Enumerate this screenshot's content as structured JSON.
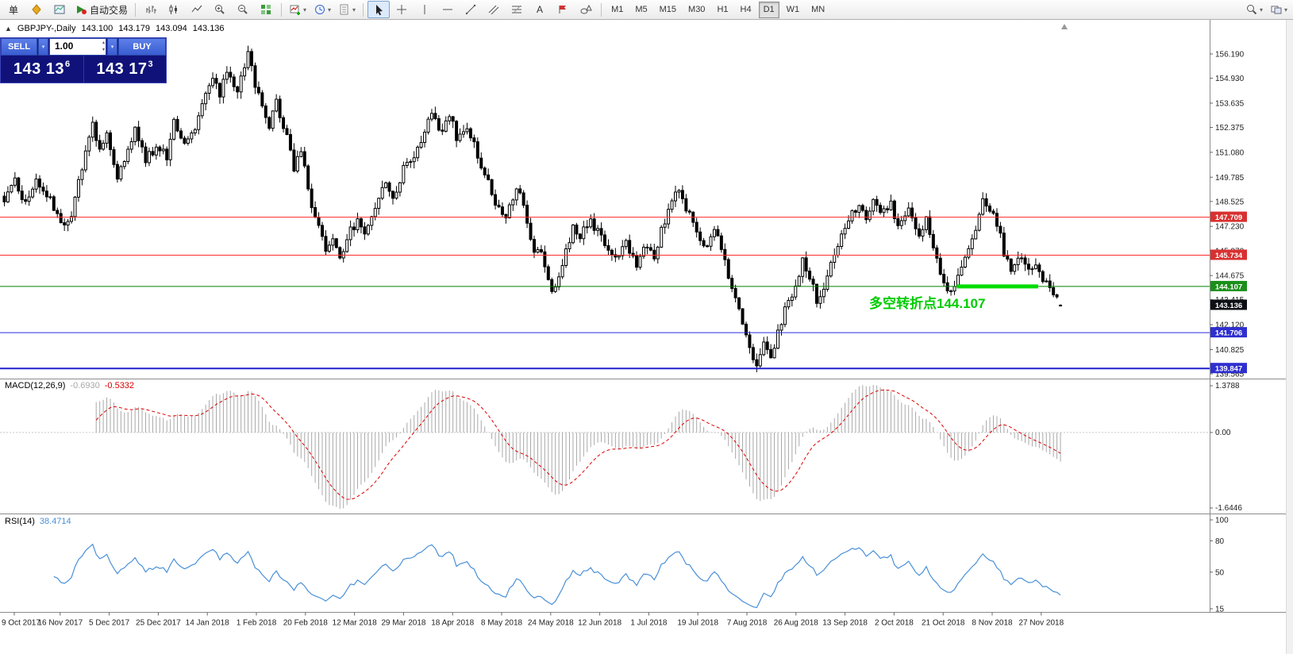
{
  "toolbar": {
    "new_order_label": "单",
    "auto_trading_label": "自动交易",
    "chart_group_icons": [
      "bar-chart-icon",
      "candlestick-chart-icon",
      "line-chart-icon",
      "zoom-in-icon",
      "zoom-out-icon",
      "tile-windows-icon"
    ],
    "insert_group_icons": [
      "new-chart-icon",
      "profiles-icon",
      "templates-icon"
    ],
    "tools_group_icons": [
      "cursor-icon",
      "crosshair-icon",
      "vertical-line-icon",
      "horizontal-line-icon",
      "trendline-icon",
      "equidistant-channel-icon",
      "fibonacci-icon",
      "text-icon",
      "arrow-label-icon",
      "shapes-icon"
    ],
    "timeframes": {
      "items": [
        "M1",
        "M5",
        "M15",
        "M30",
        "H1",
        "H4",
        "D1",
        "W1",
        "MN"
      ],
      "selected": "D1"
    },
    "right_icons": [
      "search-icon",
      "window-cascade-icon"
    ]
  },
  "chart": {
    "header": {
      "symbol": "GBPJPY-,Daily",
      "open": "143.100",
      "high": "143.179",
      "low": "143.094",
      "close": "143.136"
    },
    "trade_panel": {
      "sell_label": "SELL",
      "buy_label": "BUY",
      "volume": "1.00",
      "bid_main": "143 13",
      "bid_sup": "6",
      "ask_main": "143 17",
      "ask_sup": "3"
    },
    "annotation": {
      "text": "多空转折点144.107",
      "color": "#00CC00"
    },
    "levels": [
      {
        "price": 147.709,
        "label": "147.709",
        "line_color": "#FF2A2A",
        "badge_bg": "#D83030",
        "width": 1
      },
      {
        "price": 145.734,
        "label": "145.734",
        "line_color": "#FF2A2A",
        "badge_bg": "#D83030",
        "width": 1
      },
      {
        "price": 144.107,
        "label": "144.107",
        "line_color": "#008000",
        "badge_bg": "#1A8F1A",
        "width": 1
      },
      {
        "price": 141.706,
        "label": "141.706",
        "line_color": "#2A2AE0",
        "badge_bg": "#2F2FD0",
        "width": 1
      },
      {
        "price": 139.847,
        "label": "139.847",
        "line_color": "#2020CC",
        "badge_bg": "#2F2FD0",
        "width": 2
      }
    ],
    "current_price": {
      "label": "143.136",
      "badge_bg": "#0C0F14"
    },
    "highlight": {
      "price": 144.107,
      "bar_start": 270,
      "bar_end": 293,
      "color": "#00DC00"
    },
    "price_scale_labels": [
      "156.190",
      "154.930",
      "153.635",
      "152.375",
      "151.080",
      "149.785",
      "148.525",
      "147.230",
      "145.970",
      "144.675",
      "143.415",
      "142.120",
      "140.825",
      "139.565"
    ]
  },
  "indicators": {
    "macd": {
      "title": "MACD(12,26,9)",
      "value_main": "-0.6930",
      "value_signal": "-0.5332",
      "scale_top": "1.3788",
      "scale_zero": "0.00",
      "scale_bottom": "-1.6446",
      "fast": 12,
      "slow": 26,
      "signal": 9,
      "histogram_color": "#A8A8A8",
      "signal_color": "#DD0000"
    },
    "rsi": {
      "title": "RSI(14)",
      "value": "38.4714",
      "period": 14,
      "scale": [
        "100",
        "80",
        "50",
        "15"
      ],
      "line_color": "#4A90D9"
    }
  },
  "time_axis": {
    "labels": [
      "9 Oct 2017",
      "16 Nov 2017",
      "5 Dec 2017",
      "25 Dec 2017",
      "14 Jan 2018",
      "1 Feb 2018",
      "20 Feb 2018",
      "12 Mar 2018",
      "29 Mar 2018",
      "18 Apr 2018",
      "8 May 2018",
      "24 May 2018",
      "12 Jun 2018",
      "1 Jul 2018",
      "19 Jul 2018",
      "7 Aug 2018",
      "26 Aug 2018",
      "13 Sep 2018",
      "2 Oct 2018",
      "21 Oct 2018",
      "8 Nov 2018",
      "27 Nov 2018"
    ]
  },
  "chart_data": {
    "type": "candlestick",
    "symbol": "GBPJPY-",
    "period": "Daily",
    "bars": 300,
    "ohlc_last": {
      "open": 143.1,
      "high": 143.179,
      "low": 143.094,
      "close": 143.136
    },
    "visible_high": 156.6,
    "visible_low": 139.7,
    "indicators": [
      "MACD(12,26,9)",
      "RSI(14)"
    ],
    "price_anchors": [
      [
        0,
        148.7
      ],
      [
        3,
        149.5
      ],
      [
        6,
        148.4
      ],
      [
        9,
        149.6
      ],
      [
        12,
        148.9
      ],
      [
        16,
        147.4
      ],
      [
        19,
        147.8
      ],
      [
        22,
        150.4
      ],
      [
        25,
        152.5
      ],
      [
        27,
        151.1
      ],
      [
        29,
        151.9
      ],
      [
        32,
        149.9
      ],
      [
        34,
        150.7
      ],
      [
        37,
        152.3
      ],
      [
        40,
        150.7
      ],
      [
        43,
        151.3
      ],
      [
        46,
        150.9
      ],
      [
        48,
        152.8
      ],
      [
        51,
        151.6
      ],
      [
        54,
        152.4
      ],
      [
        56,
        153.8
      ],
      [
        59,
        154.9
      ],
      [
        61,
        154.1
      ],
      [
        63,
        155.2
      ],
      [
        66,
        154.3
      ],
      [
        69,
        156.2
      ],
      [
        71,
        154.7
      ],
      [
        73,
        153.4
      ],
      [
        75,
        152.4
      ],
      [
        77,
        153.6
      ],
      [
        80,
        151.9
      ],
      [
        82,
        150.3
      ],
      [
        84,
        151.0
      ],
      [
        87,
        148.4
      ],
      [
        89,
        147.2
      ],
      [
        91,
        145.9
      ],
      [
        93,
        146.5
      ],
      [
        95,
        145.4
      ],
      [
        97,
        146.7
      ],
      [
        100,
        147.5
      ],
      [
        102,
        146.9
      ],
      [
        105,
        148.3
      ],
      [
        108,
        149.4
      ],
      [
        110,
        148.7
      ],
      [
        113,
        150.2
      ],
      [
        116,
        151.0
      ],
      [
        119,
        152.1
      ],
      [
        121,
        153.2
      ],
      [
        124,
        152.1
      ],
      [
        126,
        153.0
      ],
      [
        128,
        151.9
      ],
      [
        131,
        152.5
      ],
      [
        134,
        150.9
      ],
      [
        137,
        149.6
      ],
      [
        139,
        148.4
      ],
      [
        142,
        147.9
      ],
      [
        145,
        149.3
      ],
      [
        147,
        148.4
      ],
      [
        149,
        146.3
      ],
      [
        152,
        145.7
      ],
      [
        155,
        143.7
      ],
      [
        157,
        144.7
      ],
      [
        159,
        145.9
      ],
      [
        161,
        147.3
      ],
      [
        163,
        146.7
      ],
      [
        166,
        147.6
      ],
      [
        168,
        146.9
      ],
      [
        171,
        145.9
      ],
      [
        173,
        145.4
      ],
      [
        176,
        146.3
      ],
      [
        179,
        145.3
      ],
      [
        181,
        146.2
      ],
      [
        184,
        145.7
      ],
      [
        186,
        147.0
      ],
      [
        189,
        148.6
      ],
      [
        191,
        149.0
      ],
      [
        194,
        147.9
      ],
      [
        196,
        146.8
      ],
      [
        199,
        146.2
      ],
      [
        201,
        147.2
      ],
      [
        204,
        145.3
      ],
      [
        206,
        144.2
      ],
      [
        209,
        142.3
      ],
      [
        211,
        141.0
      ],
      [
        213,
        139.9
      ],
      [
        215,
        141.3
      ],
      [
        217,
        140.5
      ],
      [
        219,
        141.7
      ],
      [
        221,
        142.9
      ],
      [
        224,
        144.1
      ],
      [
        226,
        145.6
      ],
      [
        228,
        144.7
      ],
      [
        230,
        143.4
      ],
      [
        233,
        144.5
      ],
      [
        235,
        145.9
      ],
      [
        237,
        146.9
      ],
      [
        239,
        147.7
      ],
      [
        242,
        148.3
      ],
      [
        244,
        147.6
      ],
      [
        246,
        148.6
      ],
      [
        248,
        147.9
      ],
      [
        251,
        148.3
      ],
      [
        253,
        147.4
      ],
      [
        256,
        148.0
      ],
      [
        259,
        146.9
      ],
      [
        261,
        147.5
      ],
      [
        263,
        145.9
      ],
      [
        266,
        144.4
      ],
      [
        268,
        143.8
      ],
      [
        270,
        144.6
      ],
      [
        272,
        145.7
      ],
      [
        275,
        147.2
      ],
      [
        277,
        148.6
      ],
      [
        279,
        148.1
      ],
      [
        281,
        147.4
      ],
      [
        283,
        145.9
      ],
      [
        285,
        145.0
      ],
      [
        287,
        145.6
      ],
      [
        290,
        144.9
      ],
      [
        292,
        145.3
      ],
      [
        294,
        144.5
      ],
      [
        296,
        143.8
      ],
      [
        298,
        143.4
      ],
      [
        299,
        143.136
      ]
    ]
  }
}
